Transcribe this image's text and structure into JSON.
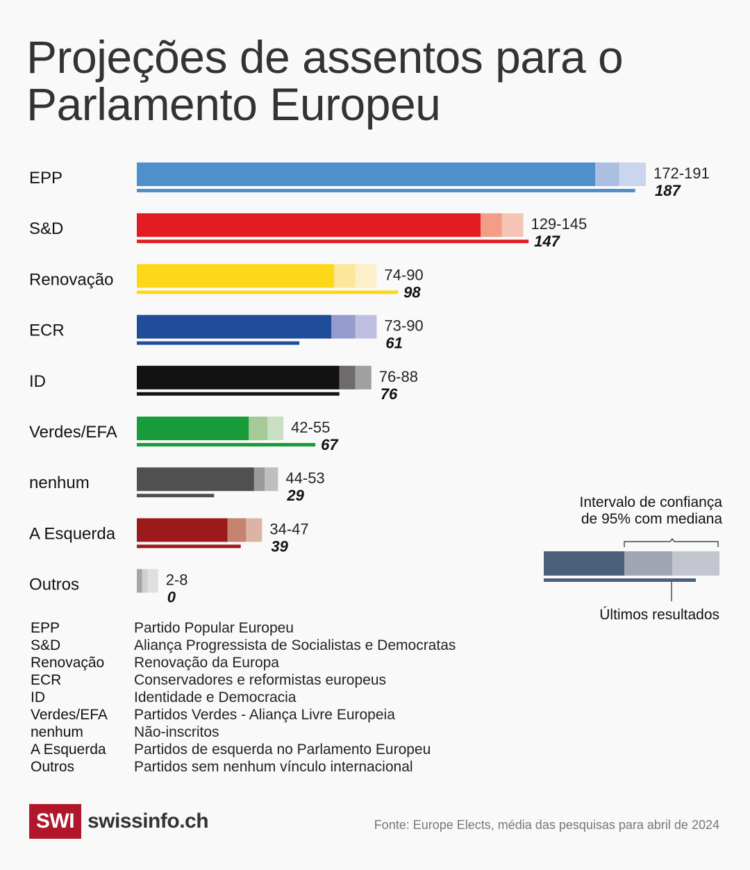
{
  "title": "Projeções de assentos para o Parlamento Europeu",
  "chart_data": {
    "type": "bar",
    "orientation": "horizontal",
    "title": "Projeções de assentos para o Parlamento Europeu",
    "xlabel": "",
    "ylabel": "",
    "xlim": [
      0,
      191
    ],
    "grid": false,
    "categories": [
      "EPP",
      "S&D",
      "Renovação",
      "ECR",
      "ID",
      "Verdes/EFA",
      "nenhum",
      "A Esquerda",
      "Outros"
    ],
    "series": [
      {
        "name": "Intervalo de confiança de 95% – limite inferior",
        "values": [
          172,
          129,
          74,
          73,
          76,
          42,
          44,
          34,
          2
        ]
      },
      {
        "name": "Mediana",
        "values": [
          181,
          137,
          82,
          82,
          82,
          49,
          48,
          41,
          4
        ]
      },
      {
        "name": "Intervalo de confiança de 95% – limite superior",
        "values": [
          191,
          145,
          90,
          90,
          88,
          55,
          53,
          47,
          8
        ]
      },
      {
        "name": "Últimos resultados",
        "values": [
          187,
          147,
          98,
          61,
          76,
          67,
          29,
          39,
          0
        ]
      }
    ],
    "range_labels": [
      "172-191",
      "129-145",
      "74-90",
      "73-90",
      "76-88",
      "42-55",
      "44-53",
      "34-47",
      "2-8"
    ],
    "last_labels": [
      "187",
      "147",
      "98",
      "61",
      "76",
      "67",
      "29",
      "39",
      "0"
    ],
    "colors": [
      {
        "dark": "#4f8fcc",
        "mid": "#abbfe3",
        "light": "#cad6ee"
      },
      {
        "dark": "#e31c23",
        "mid": "#f39c87",
        "light": "#f6c4b4"
      },
      {
        "dark": "#fdd819",
        "mid": "#fbe69a",
        "light": "#fbf0c9"
      },
      {
        "dark": "#1f4d9a",
        "mid": "#949ccd",
        "light": "#bfc0e1"
      },
      {
        "dark": "#121212",
        "mid": "#6f6b6d",
        "light": "#a09fa1"
      },
      {
        "dark": "#199c3a",
        "mid": "#a5c997",
        "light": "#c9dfc2"
      },
      {
        "dark": "#505050",
        "mid": "#9a9a9a",
        "light": "#bfbfbf"
      },
      {
        "dark": "#9c1a1c",
        "mid": "#c68370",
        "light": "#dcb3a4"
      },
      {
        "dark": "#a6a6a6",
        "mid": "#cfcfcf",
        "light": "#dfdfdf"
      }
    ],
    "legend": {
      "title": "Intervalo de confiança de 95% com mediana",
      "last_results": "Últimos resultados",
      "placement": "right"
    }
  },
  "legend": {
    "line1": "Intervalo de confiança",
    "line2": "de 95% com mediana",
    "last_results": "Últimos resultados",
    "colors": {
      "dark": "#4a6179",
      "mid": "#9fa6b2",
      "light": "#c3c6cf",
      "line": "#4a6179"
    }
  },
  "glossary": [
    {
      "abbr": "EPP",
      "full": "Partido Popular Europeu"
    },
    {
      "abbr": "S&D",
      "full": "Aliança Progressista de Socialistas e Democratas"
    },
    {
      "abbr": "Renovação",
      "full": "Renovação da Europa"
    },
    {
      "abbr": "ECR",
      "full": "Conservadores e reformistas europeus"
    },
    {
      "abbr": "ID",
      "full": "Identidade e Democracia"
    },
    {
      "abbr": "Verdes/EFA",
      "full": "Partidos Verdes - Aliança Livre Europeia"
    },
    {
      "abbr": "nenhum",
      "full": "Não-inscritos"
    },
    {
      "abbr": "A Esquerda",
      "full": "Partidos de esquerda no Parlamento Europeu"
    },
    {
      "abbr": "Outros",
      "full": "Partidos sem nenhum vínculo internacional"
    }
  ],
  "footer": {
    "logo_box": "SWI",
    "logo_text": "swissinfo.ch",
    "source": "Fonte: Europe Elects, média das pesquisas para abril de 2024"
  }
}
